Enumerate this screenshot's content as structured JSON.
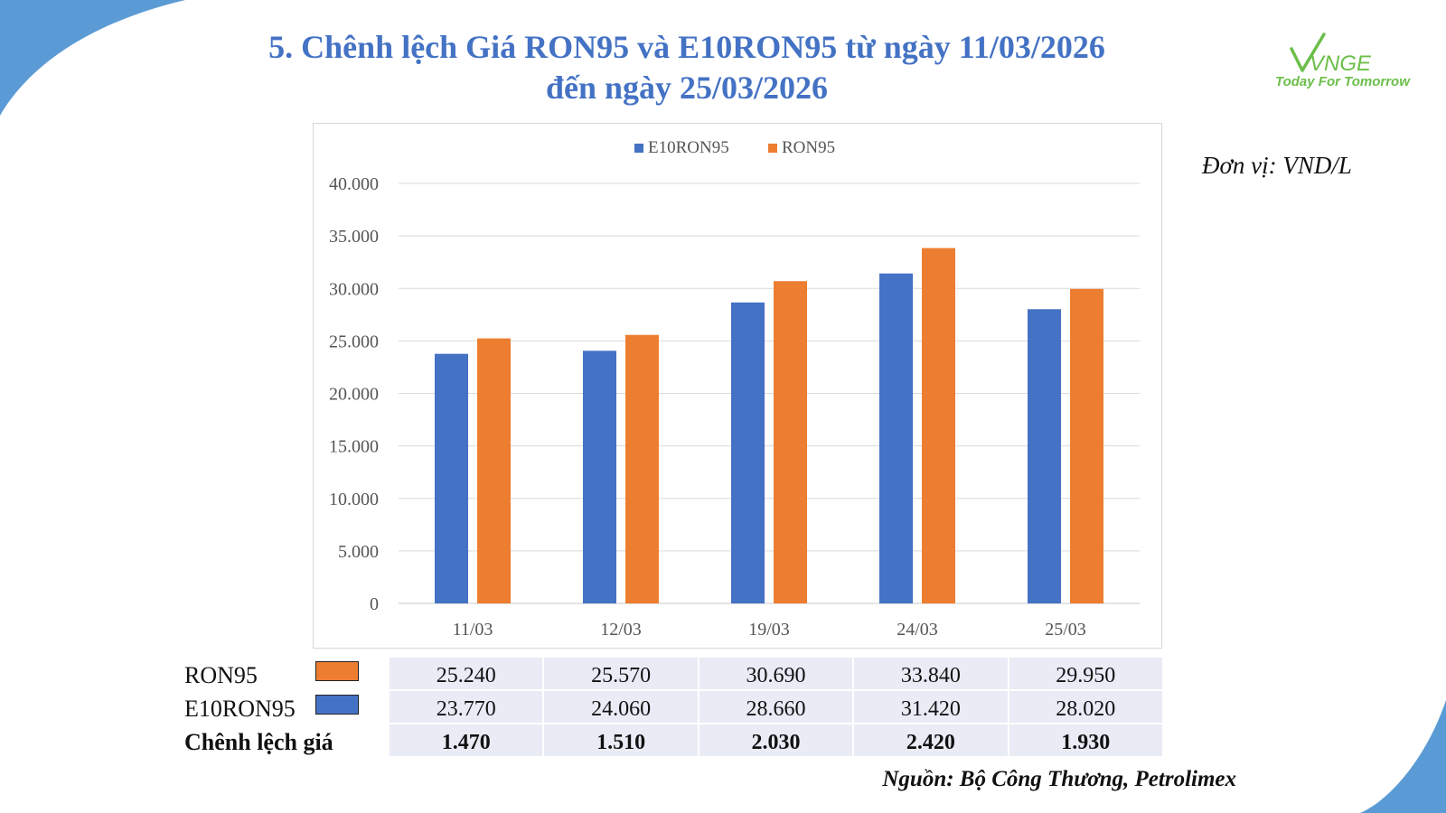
{
  "title_line1": "5. Chênh lệch Giá RON95 và E10RON95 từ ngày 11/03/2026",
  "title_line2": "đến ngày 25/03/2026",
  "logo_text": "Today For Tomorrow",
  "logo_mark": "VNGE",
  "unit": "Đơn vị: VND/L",
  "source": "Nguồn: Bộ Công Thương, Petrolimex",
  "colors": {
    "e10ron95": "#4472C4",
    "ron95": "#ED7D31",
    "title": "#4472C4",
    "accent_corner": "#5B9BD5"
  },
  "chart_data": {
    "type": "bar",
    "categories": [
      "11/03",
      "12/03",
      "19/03",
      "24/03",
      "25/03"
    ],
    "series": [
      {
        "name": "E10RON95",
        "values": [
          23770,
          24060,
          28660,
          31420,
          28020
        ]
      },
      {
        "name": "RON95",
        "values": [
          25240,
          25570,
          30690,
          33840,
          29950
        ]
      }
    ],
    "yticks": [
      "0",
      "5.000",
      "10.000",
      "15.000",
      "20.000",
      "25.000",
      "30.000",
      "35.000",
      "40.000"
    ],
    "ylim": [
      0,
      40000
    ],
    "grid": true,
    "legend": "top-center"
  },
  "table": {
    "rows": [
      {
        "label": "RON95",
        "swatch": "ron95",
        "values": [
          "25.240",
          "25.570",
          "30.690",
          "33.840",
          "29.950"
        ]
      },
      {
        "label": "E10RON95",
        "swatch": "e10ron95",
        "values": [
          "23.770",
          "24.060",
          "28.660",
          "31.420",
          "28.020"
        ]
      },
      {
        "label": "Chênh lệch giá",
        "values": [
          "1.470",
          "1.510",
          "2.030",
          "2.420",
          "1.930"
        ]
      }
    ]
  }
}
